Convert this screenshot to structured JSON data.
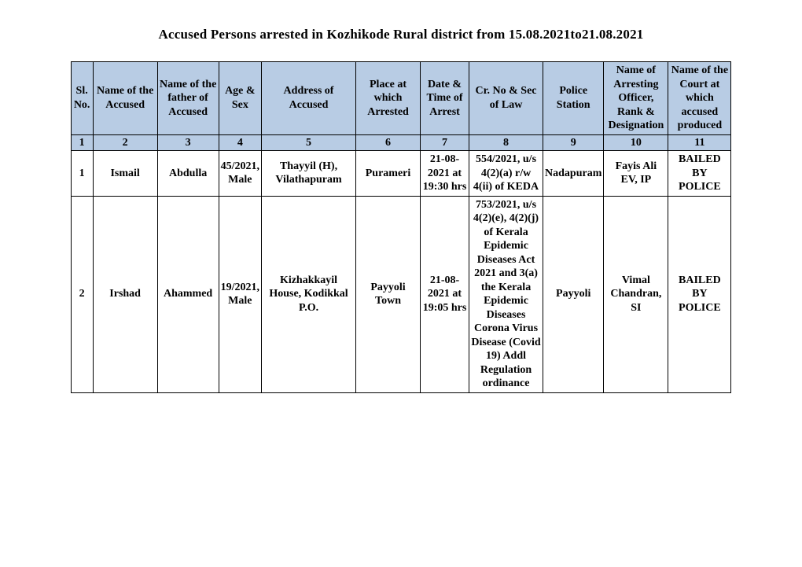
{
  "title": "Accused Persons arrested in   Kozhikode Rural    district from   15.08.2021to21.08.2021",
  "columns": [
    "Sl. No.",
    "Name of the Accused",
    "Name of the father of Accused",
    "Age & Sex",
    "Address of Accused",
    "Place at which Arrested",
    "Date & Time of Arrest",
    "Cr. No & Sec of Law",
    "Police Station",
    "Name of Arresting Officer, Rank & Designation",
    "Name of the Court at which accused produced"
  ],
  "colnums": [
    "1",
    "2",
    "3",
    "4",
    "5",
    "6",
    "7",
    "8",
    "9",
    "10",
    "11"
  ],
  "rows": [
    {
      "c1": "1",
      "c2": "Ismail",
      "c3": "Abdulla",
      "c4": "45/2021, Male",
      "c5": "Thayyil (H), Vilathapuram",
      "c6": "Purameri",
      "c7": "21-08-2021 at 19:30 hrs",
      "c8": "554/2021, u/s 4(2)(a) r/w 4(ii) of KEDA",
      "c9": "Nadapuram",
      "c10": "Fayis Ali EV, IP",
      "c11": "BAILED BY POLICE"
    },
    {
      "c1": "2",
      "c2": "Irshad",
      "c3": "Ahammed",
      "c4": "19/2021, Male",
      "c5": "Kizhakkayil House, Kodikkal P.O.",
      "c6": "Payyoli Town",
      "c7": "21-08-2021 at 19:05 hrs",
      "c8": "753/2021, u/s 4(2)(e), 4(2)(j) of Kerala Epidemic Diseases Act 2021 and 3(a) the Kerala Epidemic Diseases Corona Virus Disease (Covid 19) Addl Regulation ordinance",
      "c9": "Payyoli",
      "c10": "Vimal Chandran, SI",
      "c11": "BAILED BY POLICE"
    }
  ]
}
